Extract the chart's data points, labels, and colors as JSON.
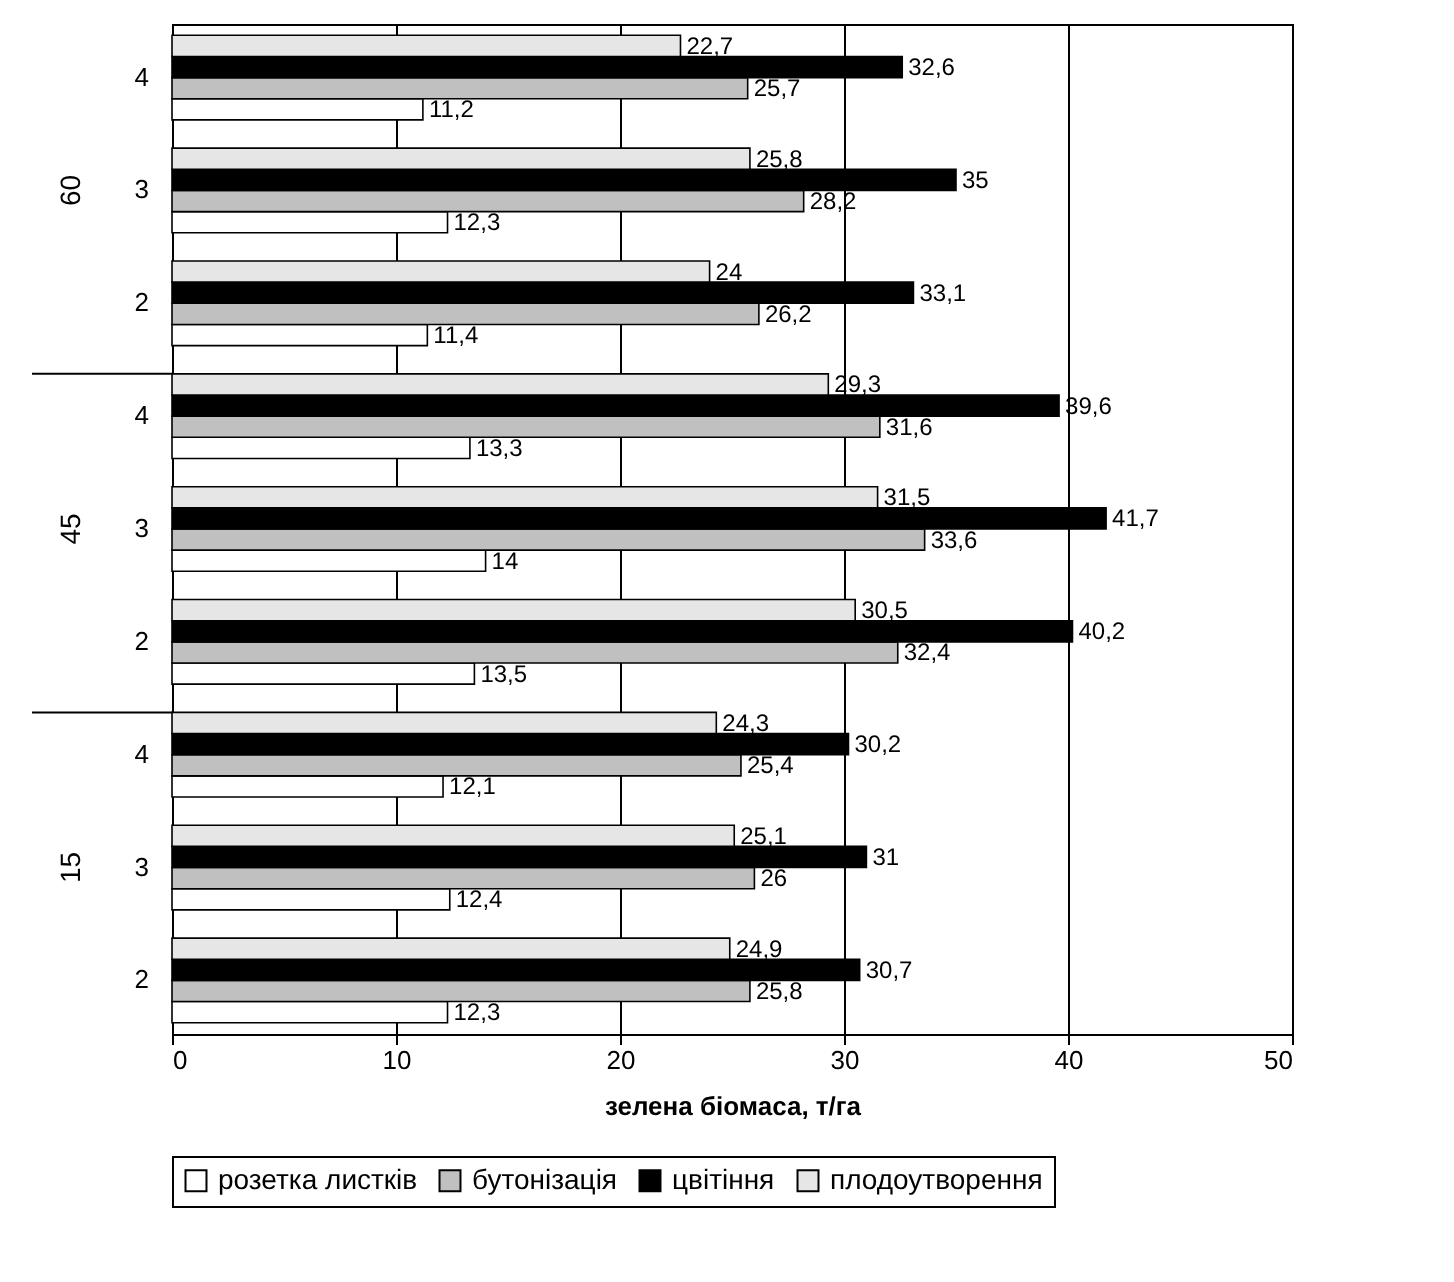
{
  "chart_data": {
    "type": "bar",
    "orientation": "horizontal",
    "xlabel": "зелена біомаса, т/га",
    "categories": [
      "4",
      "3",
      "2",
      "4",
      "3",
      "2",
      "4",
      "3",
      "2"
    ],
    "annotations": [
      "60",
      "45",
      "15"
    ],
    "series": [
      {
        "name": "розетка листків",
        "color": "#ffffff",
        "values": [
          11.2,
          12.3,
          11.4,
          13.3,
          14,
          13.5,
          12.1,
          12.4,
          12.3
        ],
        "value_labels": [
          "11,2",
          "12,3",
          "11,4",
          "13,3",
          "14",
          "13,5",
          "12,1",
          "12,4",
          "12,3"
        ]
      },
      {
        "name": "бутонізація",
        "color": "#c0c0c0",
        "values": [
          25.7,
          28.2,
          26.2,
          31.6,
          33.6,
          32.4,
          25.4,
          26,
          25.8
        ],
        "value_labels": [
          "25,7",
          "28,2",
          "26,2",
          "31,6",
          "33,6",
          "32,4",
          "25,4",
          "26",
          "25,8"
        ]
      },
      {
        "name": "цвітіння",
        "color": "#000000",
        "values": [
          32.6,
          35,
          33.1,
          39.6,
          41.7,
          40.2,
          30.2,
          31,
          30.7
        ],
        "value_labels": [
          "32,6",
          "35",
          "33,1",
          "39,6",
          "41,7",
          "40,2",
          "30,2",
          "31",
          "30,7"
        ]
      },
      {
        "name": "плодоутворення",
        "color": "#e6e6e6",
        "values": [
          22.7,
          25.8,
          24,
          29.3,
          31.5,
          30.5,
          24.3,
          25.1,
          24.9
        ],
        "value_labels": [
          "22,7",
          "25,8",
          "24",
          "29,3",
          "31,5",
          "30,5",
          "24,3",
          "25,1",
          "24,9"
        ]
      }
    ],
    "xlim": [
      0,
      50
    ],
    "xticks": [
      0,
      10,
      20,
      30,
      40,
      50
    ],
    "grid": "x",
    "legend": "bottom"
  }
}
